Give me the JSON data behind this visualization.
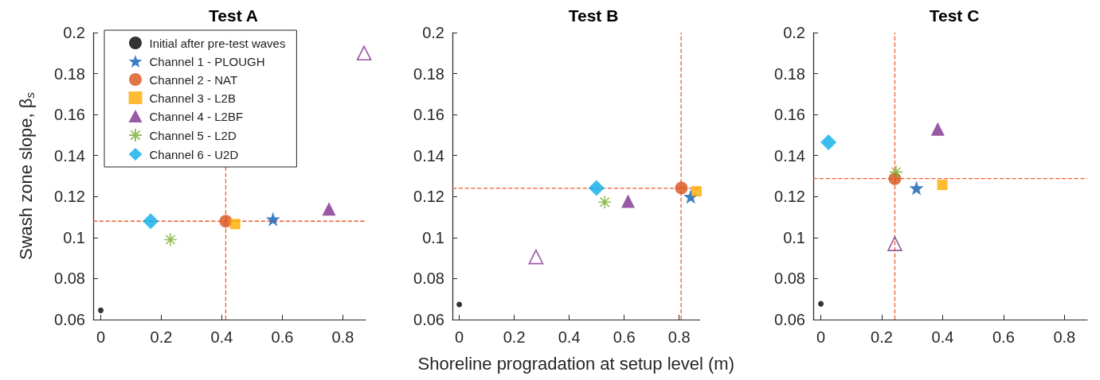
{
  "chart_data": [
    {
      "type": "scatter",
      "title": "Test A",
      "ylabel": "Swash zone slope, β$_{s}$",
      "xlim": [
        -0.025,
        0.875
      ],
      "ylim": [
        0.06,
        0.2
      ],
      "xticks": [
        0,
        0.2,
        0.4,
        0.6,
        0.8
      ],
      "yticks": [
        0.06,
        0.08,
        0.1,
        0.12,
        0.14,
        0.16,
        0.18,
        0.2
      ],
      "legend": "top left",
      "ref_lines": [
        {
          "axis": "x",
          "value": 0.413,
          "color": "#ef5b2b",
          "line_style": "dashed"
        },
        {
          "axis": "y",
          "value": 0.108,
          "color": "#ef5b2b",
          "line_style": "dashed"
        }
      ],
      "series": [
        {
          "name": "Initial after pre-test waves",
          "color": "#000000",
          "marker": "circle",
          "x": [
            0
          ],
          "values": [
            0.0645
          ]
        },
        {
          "name": "Channel 1 - PLOUGH",
          "color": "#0b5cb5",
          "marker": "star",
          "x": [
            0.569
          ],
          "values": [
            0.109
          ]
        },
        {
          "name": "Channel 2 - NAT",
          "color": "#d95319",
          "marker": "circle",
          "x": [
            0.413
          ],
          "values": [
            0.108
          ]
        },
        {
          "name": "Channel 3 - L2B",
          "color": "#ffaa00",
          "marker": "square",
          "x": [
            0.444
          ],
          "values": [
            0.1066
          ]
        },
        {
          "name": "Channel 4 - L2BF",
          "color": "#7e2f8e",
          "marker": "triangle",
          "x": [
            0.754
          ],
          "values": [
            0.114
          ]
        },
        {
          "name": "Channel 5 - L2D",
          "color": "#77ac30",
          "marker": "cross",
          "x": [
            0.23
          ],
          "values": [
            0.099
          ]
        },
        {
          "name": "Channel 6 - U2D",
          "color": "#0aaee8",
          "marker": "diamond",
          "x": [
            0.165
          ],
          "values": [
            0.108
          ]
        },
        {
          "color": "#7e2f8e",
          "marker": "triangle",
          "x": [
            0.87
          ],
          "values": [
            0.19
          ]
        }
      ]
    },
    {
      "type": "scatter",
      "title": "Test B",
      "xlabel": "Shoreline progradation at setup level (m)",
      "xlim": [
        -0.025,
        0.875
      ],
      "ylim": [
        0.06,
        0.2
      ],
      "xticks": [
        0,
        0.2,
        0.4,
        0.6,
        0.8
      ],
      "yticks": [
        0.06,
        0.08,
        0.1,
        0.12,
        0.14,
        0.16,
        0.18,
        0.2
      ],
      "ref_lines": [
        {
          "axis": "x",
          "value": 0.807,
          "color": "#ef5b2b",
          "line_style": "dashed"
        },
        {
          "axis": "y",
          "value": 0.124,
          "color": "#ef5b2b",
          "line_style": "dashed"
        }
      ],
      "series": [
        {
          "color": "#000000",
          "marker": "circle",
          "x": [
            0
          ],
          "values": [
            0.0674
          ]
        },
        {
          "color": "#0b5cb5",
          "marker": "star",
          "x": [
            0.842
          ],
          "values": [
            0.12
          ]
        },
        {
          "color": "#d95319",
          "marker": "circle",
          "x": [
            0.808
          ],
          "values": [
            0.1242
          ]
        },
        {
          "color": "#ffaa00",
          "marker": "square",
          "x": [
            0.863
          ],
          "values": [
            0.1226
          ]
        },
        {
          "color": "#7e2f8e",
          "marker": "triangle",
          "x": [
            0.614
          ],
          "values": [
            0.1178
          ]
        },
        {
          "color": "#77ac30",
          "marker": "cross",
          "x": [
            0.529
          ],
          "values": [
            0.1173
          ]
        },
        {
          "color": "#0aaee8",
          "marker": "diamond",
          "x": [
            0.499
          ],
          "values": [
            0.1242
          ]
        },
        {
          "color": "#7e2f8e",
          "marker": "triangle",
          "x": [
            0.279
          ],
          "values": [
            0.0906
          ]
        }
      ]
    },
    {
      "type": "scatter",
      "title": "Test C",
      "xlim": [
        -0.025,
        0.875
      ],
      "ylim": [
        0.06,
        0.2
      ],
      "xticks": [
        0,
        0.2,
        0.4,
        0.6,
        0.8
      ],
      "yticks": [
        0.06,
        0.08,
        0.1,
        0.12,
        0.14,
        0.16,
        0.18,
        0.2
      ],
      "ref_lines": [
        {
          "axis": "x",
          "value": 0.243,
          "color": "#ef5b2b",
          "line_style": "dashed"
        },
        {
          "axis": "y",
          "value": 0.1288,
          "color": "#ef5b2b",
          "line_style": "dashed"
        }
      ],
      "series": [
        {
          "color": "#000000",
          "marker": "circle",
          "x": [
            0
          ],
          "values": [
            0.0677
          ]
        },
        {
          "color": "#0b5cb5",
          "marker": "star",
          "x": [
            0.314
          ],
          "values": [
            0.1242
          ]
        },
        {
          "color": "#d95319",
          "marker": "circle",
          "x": [
            0.243
          ],
          "values": [
            0.1287
          ]
        },
        {
          "color": "#ffaa00",
          "marker": "square",
          "x": [
            0.399
          ],
          "values": [
            0.1257
          ]
        },
        {
          "color": "#7e2f8e",
          "marker": "triangle",
          "x": [
            0.384
          ],
          "values": [
            0.153
          ]
        },
        {
          "color": "#77ac30",
          "marker": "cross",
          "x": [
            0.247
          ],
          "values": [
            0.132
          ]
        },
        {
          "color": "#0aaee8",
          "marker": "diamond",
          "x": [
            0.025
          ],
          "values": [
            0.1465
          ]
        },
        {
          "color": "#7e2f8e",
          "marker": "triangle",
          "x": [
            0.243
          ],
          "values": [
            0.097
          ]
        }
      ]
    }
  ]
}
